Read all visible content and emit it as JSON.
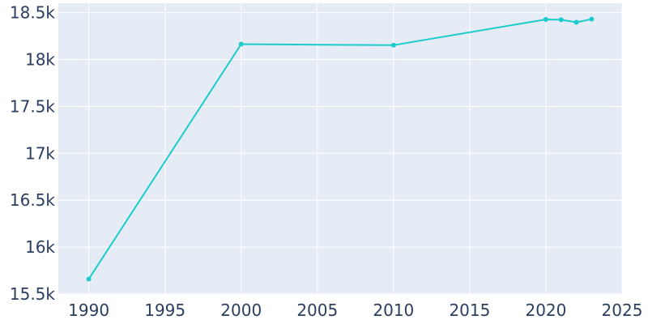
{
  "chart_data": {
    "type": "line",
    "title": "",
    "xlabel": "",
    "ylabel": "",
    "x": [
      1990,
      2000,
      2010,
      2020,
      2021,
      2022,
      2023
    ],
    "series": [
      {
        "values": [
          15660,
          18164,
          18153,
          18427,
          18424,
          18397,
          18430
        ],
        "color": "#1ccccc"
      }
    ],
    "xlim": [
      1988,
      2025
    ],
    "ylim": [
      15500,
      18600
    ],
    "x_ticks": [
      1990,
      1995,
      2000,
      2005,
      2010,
      2015,
      2020,
      2025
    ],
    "x_tick_labels": [
      "1990",
      "1995",
      "2000",
      "2005",
      "2010",
      "2015",
      "2020",
      "2025"
    ],
    "y_ticks": [
      15500,
      16000,
      16500,
      17000,
      17500,
      18000,
      18500
    ],
    "y_tick_labels": [
      "15.5k",
      "16k",
      "16.5k",
      "17k",
      "17.5k",
      "18k",
      "18.5k"
    ],
    "grid": true,
    "legend": "none",
    "plot_background": "#e5ecf6",
    "grid_color": "#ffffff",
    "tick_label_color": "#2a3f5f"
  }
}
